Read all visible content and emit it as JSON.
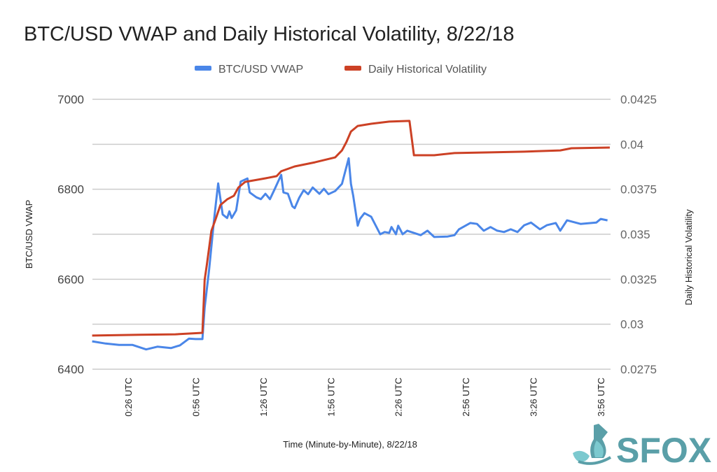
{
  "chart_data": {
    "type": "line",
    "title": "BTC/USD VWAP and Daily Historical Volatility, 8/22/18",
    "xlabel": "Time (Minute-by-Minute), 8/22/18",
    "ylabel": "BTC/USD VWAP",
    "y2label": "Daily Historical Volatility",
    "ylim": [
      6400,
      7000
    ],
    "y2lim": [
      0.0275,
      0.0425
    ],
    "yticks": [
      "6400",
      "6600",
      "6800",
      "7000"
    ],
    "y2ticks": [
      "0.0275",
      "0.03",
      "0.0325",
      "0.035",
      "0.0375",
      "0.04",
      "0.0425"
    ],
    "xticks": [
      "0:26 UTC",
      "0:56 UTC",
      "1:26 UTC",
      "1:56 UTC",
      "2:26 UTC",
      "2:56 UTC",
      "3:26 UTC",
      "3:56 UTC"
    ],
    "grid": true,
    "legend": "top",
    "series": [
      {
        "name": "BTC/USD VWAP",
        "axis": "left",
        "color": "#4a86e8",
        "x": [
          "0:10",
          "0:16",
          "0:22",
          "0:28",
          "0:34",
          "0:39",
          "0:45",
          "0:49",
          "0:53",
          "0:56",
          "0:59",
          "1:00",
          "1:02",
          "1:04",
          "1:05",
          "1:06",
          "1:08",
          "1:10",
          "1:11",
          "1:12",
          "1:14",
          "1:16",
          "1:19",
          "1:20",
          "1:23",
          "1:25",
          "1:27",
          "1:29",
          "1:31",
          "1:34",
          "1:35",
          "1:37",
          "1:39",
          "1:40",
          "1:42",
          "1:44",
          "1:46",
          "1:48",
          "1:51",
          "1:53",
          "1:55",
          "1:58",
          "2:01",
          "2:04",
          "2:05",
          "2:06",
          "2:08",
          "2:09",
          "2:11",
          "2:14",
          "2:18",
          "2:20",
          "2:22",
          "2:23",
          "2:25",
          "2:26",
          "2:28",
          "2:30",
          "2:36",
          "2:39",
          "2:42",
          "2:48",
          "2:51",
          "2:53",
          "2:58",
          "3:01",
          "3:04",
          "3:07",
          "3:10",
          "3:13",
          "3:16",
          "3:19",
          "3:22",
          "3:25",
          "3:29",
          "3:32",
          "3:36",
          "3:38",
          "3:41",
          "3:47",
          "3:54",
          "3:56",
          "3:59"
        ],
        "values": [
          6462,
          6457,
          6454,
          6454,
          6444,
          6450,
          6447,
          6453,
          6468,
          6467,
          6467,
          6537,
          6622,
          6723,
          6770,
          6813,
          6744,
          6736,
          6751,
          6736,
          6753,
          6817,
          6824,
          6793,
          6782,
          6778,
          6790,
          6778,
          6799,
          6832,
          6793,
          6790,
          6762,
          6758,
          6781,
          6798,
          6789,
          6804,
          6790,
          6801,
          6789,
          6796,
          6812,
          6869,
          6812,
          6786,
          6719,
          6734,
          6747,
          6739,
          6700,
          6705,
          6703,
          6716,
          6700,
          6719,
          6700,
          6708,
          6698,
          6708,
          6694,
          6695,
          6698,
          6711,
          6725,
          6723,
          6708,
          6716,
          6708,
          6705,
          6711,
          6705,
          6720,
          6726,
          6711,
          6720,
          6725,
          6708,
          6731,
          6723,
          6726,
          6734,
          6731
        ]
      },
      {
        "name": "Daily Historical Volatility",
        "axis": "right",
        "color": "#cc4125",
        "x": [
          "0:10",
          "0:31",
          "0:47",
          "0:59",
          "1:00",
          "1:01",
          "1:03",
          "1:05",
          "1:07",
          "1:10",
          "1:13",
          "1:15",
          "1:18",
          "1:27",
          "1:32",
          "1:34",
          "1:40",
          "1:49",
          "1:58",
          "2:01",
          "2:03",
          "2:05",
          "2:08",
          "2:14",
          "2:22",
          "2:31",
          "2:33",
          "2:42",
          "2:51",
          "3:07",
          "3:22",
          "3:38",
          "3:43",
          "4:00"
        ],
        "values": [
          0.02937,
          0.02941,
          0.02944,
          0.02952,
          0.03247,
          0.03333,
          0.03519,
          0.03589,
          0.03663,
          0.03694,
          0.03714,
          0.0376,
          0.03791,
          0.03811,
          0.03823,
          0.0385,
          0.03877,
          0.039,
          0.03927,
          0.03966,
          0.04013,
          0.04071,
          0.04102,
          0.04114,
          0.04126,
          0.0413,
          0.03939,
          0.03939,
          0.03951,
          0.03955,
          0.03959,
          0.03966,
          0.03978,
          0.03982
        ]
      }
    ]
  },
  "logo": {
    "text": "SFOX",
    "color": "#5a9fa8"
  }
}
